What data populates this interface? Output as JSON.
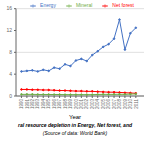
{
  "chart_data": {
    "type": "line",
    "title": "ral resource depletion in Energy, Net forest, and",
    "subtitle": "(Source of data: World Bank)",
    "x_label": "Year",
    "x": [
      1990,
      1991,
      1992,
      1993,
      1994,
      1995,
      1996,
      1997,
      1998,
      1999,
      2000,
      2001,
      2002,
      2003,
      2004,
      2005,
      2006,
      2007,
      2008,
      2009,
      2010,
      2011
    ],
    "series": [
      {
        "name": "Energy",
        "color": "#4472C4",
        "marker": "o",
        "values": [
          4.5,
          4.6,
          4.7,
          4.5,
          4.8,
          4.6,
          5.2,
          5.0,
          5.8,
          5.5,
          6.5,
          6.8,
          6.4,
          7.5,
          8.2,
          9.0,
          9.5,
          10.5,
          14.0,
          8.5,
          11.5,
          12.5
        ]
      },
      {
        "name": "Net forest",
        "color": "#FF0000",
        "marker": "o",
        "values": [
          1.2,
          1.2,
          1.15,
          1.15,
          1.1,
          1.1,
          1.05,
          1.0,
          1.0,
          0.95,
          0.9,
          0.9,
          0.85,
          0.85,
          0.8,
          0.75,
          0.7,
          0.7,
          0.65,
          0.6,
          0.55,
          0.5
        ]
      },
      {
        "name": "Mineral",
        "color": "#70AD47",
        "marker": "o",
        "values": [
          0.3,
          0.3,
          0.3,
          0.28,
          0.28,
          0.28,
          0.27,
          0.27,
          0.25,
          0.25,
          0.25,
          0.25,
          0.25,
          0.25,
          0.28,
          0.3,
          0.3,
          0.3,
          0.32,
          0.3,
          0.35,
          0.38
        ]
      }
    ],
    "xlim": [
      1989,
      2012.5
    ],
    "xticks": [
      1990,
      1991,
      1992,
      1993,
      1994,
      1995,
      1996,
      1997,
      1998,
      1999,
      2000,
      2001,
      2002,
      2003,
      2004,
      2005,
      2006,
      2007,
      2008,
      2009,
      2010,
      2011
    ],
    "ylim": [
      0,
      16
    ],
    "yticks": [
      0,
      4,
      8,
      12,
      16
    ],
    "grid": true,
    "legend": "upper right"
  }
}
